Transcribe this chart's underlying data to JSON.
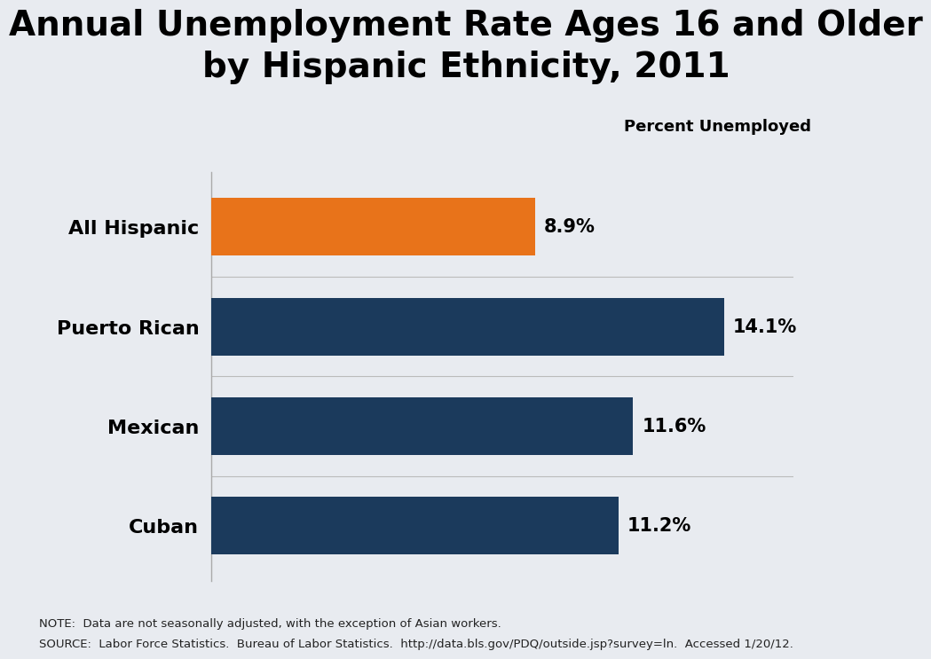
{
  "title": "Annual Unemployment Rate Ages 16 and Older\nby Hispanic Ethnicity, 2011",
  "subtitle": "Percent Unemployed",
  "categories": [
    "All Hispanic",
    "Puerto Rican",
    "Mexican",
    "Cuban"
  ],
  "values": [
    8.9,
    14.1,
    11.6,
    11.2
  ],
  "labels": [
    "8.9%",
    "14.1%",
    "11.6%",
    "11.2%"
  ],
  "bar_colors": [
    "#E8731A",
    "#1B3A5C",
    "#1B3A5C",
    "#1B3A5C"
  ],
  "background_color": "#E8EBF0",
  "text_color": "#000000",
  "note_line1": "NOTE:  Data are not seasonally adjusted, with the exception of Asian workers.",
  "note_line2": "SOURCE:  Labor Force Statistics.  Bureau of Labor Statistics.  http://data.bls.gov/PDQ/outside.jsp?survey=ln.  Accessed 1/20/12.",
  "xlim": [
    0,
    16
  ],
  "title_fontsize": 28,
  "subtitle_fontsize": 13,
  "label_fontsize": 15,
  "category_fontsize": 16,
  "note_fontsize": 9.5
}
